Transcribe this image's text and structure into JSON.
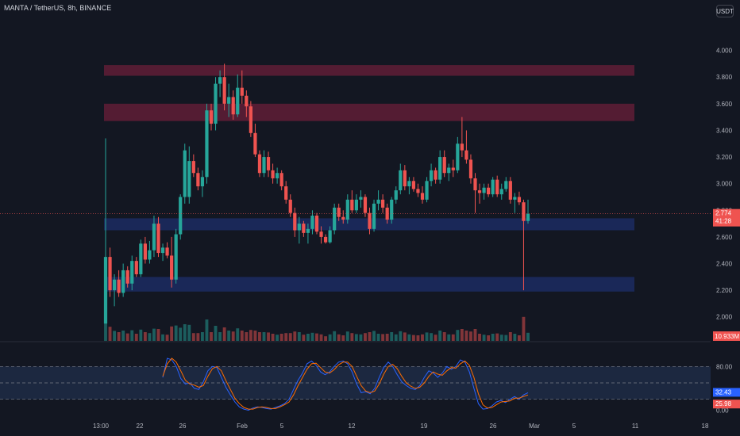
{
  "header": {
    "title": "MANTA / TetherUS, 8h, BINANCE",
    "currency_button": "USDT"
  },
  "colors": {
    "background": "#131722",
    "up": "#26a69a",
    "down": "#ef5350",
    "supply_zone": "#6b1f3a",
    "demand_zone": "#1e2f6b",
    "stoch_k": "#2962ff",
    "stoch_d": "#ff6d00",
    "stoch_band": "#1e2a44"
  },
  "chart_data": [
    {
      "type": "candlestick",
      "price_axis": {
        "ticks": [
          "4.000",
          "3.800",
          "3.600",
          "3.400",
          "3.200",
          "3.000",
          "2.800",
          "2.600",
          "2.400",
          "2.200",
          "2.000"
        ],
        "tick_values": [
          4.0,
          3.8,
          3.6,
          3.4,
          3.2,
          3.0,
          2.8,
          2.6,
          2.4,
          2.2,
          2.0
        ],
        "ylim": [
          1.82,
          4.2
        ]
      },
      "time_axis": {
        "labels": [
          "13:00",
          "22",
          "26",
          "Feb",
          "5",
          "12",
          "19",
          "26",
          "Mar",
          "5",
          "11",
          "18"
        ]
      },
      "last_price_label": "2.774",
      "countdown_label": "41:28",
      "volume_label": "10.933M",
      "zones": [
        {
          "kind": "supply",
          "low": 3.81,
          "high": 3.89
        },
        {
          "kind": "supply",
          "low": 3.47,
          "high": 3.6
        },
        {
          "kind": "demand",
          "low": 2.65,
          "high": 2.74
        },
        {
          "kind": "demand",
          "low": 2.19,
          "high": 2.3
        }
      ],
      "candles": [
        [
          1.95,
          3.34,
          1.95,
          2.45
        ],
        [
          2.45,
          2.52,
          2.15,
          2.2
        ],
        [
          2.2,
          2.32,
          2.08,
          2.28
        ],
        [
          2.28,
          2.35,
          2.15,
          2.18
        ],
        [
          2.18,
          2.4,
          2.15,
          2.35
        ],
        [
          2.35,
          2.38,
          2.22,
          2.25
        ],
        [
          2.25,
          2.46,
          2.2,
          2.42
        ],
        [
          2.42,
          2.45,
          2.3,
          2.32
        ],
        [
          2.32,
          2.58,
          2.3,
          2.55
        ],
        [
          2.55,
          2.6,
          2.4,
          2.43
        ],
        [
          2.43,
          2.57,
          2.4,
          2.5
        ],
        [
          2.5,
          2.76,
          2.45,
          2.7
        ],
        [
          2.7,
          2.75,
          2.45,
          2.48
        ],
        [
          2.48,
          2.55,
          2.42,
          2.52
        ],
        [
          2.52,
          2.56,
          2.44,
          2.46
        ],
        [
          2.46,
          2.6,
          2.22,
          2.28
        ],
        [
          2.28,
          2.66,
          2.25,
          2.62
        ],
        [
          2.62,
          2.92,
          2.58,
          2.9
        ],
        [
          2.9,
          3.3,
          2.85,
          3.25
        ],
        [
          2.9,
          3.28,
          2.85,
          3.17
        ],
        [
          3.17,
          3.22,
          3.05,
          3.08
        ],
        [
          3.08,
          3.12,
          2.95,
          2.98
        ],
        [
          2.98,
          3.1,
          2.9,
          3.05
        ],
        [
          3.05,
          3.6,
          3.0,
          3.55
        ],
        [
          3.55,
          3.6,
          3.4,
          3.45
        ],
        [
          3.45,
          3.8,
          3.4,
          3.75
        ],
        [
          3.75,
          3.85,
          3.65,
          3.8
        ],
        [
          3.8,
          3.9,
          3.55,
          3.6
        ],
        [
          3.6,
          3.75,
          3.5,
          3.65
        ],
        [
          3.65,
          3.7,
          3.48,
          3.52
        ],
        [
          3.52,
          3.82,
          3.5,
          3.72
        ],
        [
          3.72,
          3.85,
          3.6,
          3.66
        ],
        [
          3.66,
          3.7,
          3.5,
          3.58
        ],
        [
          3.58,
          3.62,
          3.35,
          3.38
        ],
        [
          3.38,
          3.45,
          3.2,
          3.22
        ],
        [
          3.22,
          3.25,
          3.05,
          3.08
        ],
        [
          3.08,
          3.25,
          3.05,
          3.2
        ],
        [
          3.2,
          3.24,
          3.05,
          3.1
        ],
        [
          3.1,
          3.15,
          3.0,
          3.04
        ],
        [
          3.04,
          3.12,
          3.0,
          3.08
        ],
        [
          3.08,
          3.1,
          2.95,
          2.98
        ],
        [
          2.98,
          3.02,
          2.85,
          2.88
        ],
        [
          2.88,
          2.92,
          2.75,
          2.78
        ],
        [
          2.78,
          2.82,
          2.6,
          2.65
        ],
        [
          2.65,
          2.75,
          2.55,
          2.7
        ],
        [
          2.7,
          2.72,
          2.6,
          2.63
        ],
        [
          2.63,
          2.7,
          2.55,
          2.66
        ],
        [
          2.66,
          2.8,
          2.62,
          2.76
        ],
        [
          2.76,
          2.78,
          2.62,
          2.64
        ],
        [
          2.64,
          2.68,
          2.55,
          2.6
        ],
        [
          2.6,
          2.62,
          2.55,
          2.56
        ],
        [
          2.56,
          2.68,
          2.55,
          2.65
        ],
        [
          2.65,
          2.85,
          2.62,
          2.82
        ],
        [
          2.82,
          2.85,
          2.72,
          2.75
        ],
        [
          2.75,
          2.8,
          2.7,
          2.73
        ],
        [
          2.73,
          2.92,
          2.7,
          2.88
        ],
        [
          2.88,
          2.95,
          2.78,
          2.8
        ],
        [
          2.8,
          2.92,
          2.78,
          2.88
        ],
        [
          2.88,
          2.95,
          2.82,
          2.9
        ],
        [
          2.9,
          2.92,
          2.75,
          2.78
        ],
        [
          2.78,
          2.82,
          2.62,
          2.66
        ],
        [
          2.66,
          2.88,
          2.64,
          2.85
        ],
        [
          2.85,
          2.95,
          2.8,
          2.88
        ],
        [
          2.88,
          2.92,
          2.78,
          2.82
        ],
        [
          2.82,
          2.85,
          2.7,
          2.73
        ],
        [
          2.73,
          2.9,
          2.7,
          2.88
        ],
        [
          2.88,
          2.98,
          2.85,
          2.95
        ],
        [
          2.95,
          3.15,
          2.92,
          3.1
        ],
        [
          3.1,
          3.14,
          2.95,
          2.98
        ],
        [
          2.98,
          3.05,
          2.92,
          3.02
        ],
        [
          3.02,
          3.05,
          2.94,
          2.96
        ],
        [
          2.96,
          3.0,
          2.9,
          2.93
        ],
        [
          2.93,
          2.98,
          2.85,
          2.88
        ],
        [
          2.88,
          3.05,
          2.86,
          3.02
        ],
        [
          3.02,
          3.15,
          2.98,
          3.1
        ],
        [
          3.1,
          3.12,
          3.0,
          3.03
        ],
        [
          3.03,
          3.25,
          3.0,
          3.2
        ],
        [
          3.2,
          3.25,
          3.05,
          3.08
        ],
        [
          3.08,
          3.15,
          3.02,
          3.12
        ],
        [
          3.12,
          3.18,
          3.05,
          3.1
        ],
        [
          3.1,
          3.35,
          3.08,
          3.3
        ],
        [
          3.3,
          3.5,
          3.2,
          3.25
        ],
        [
          3.25,
          3.4,
          3.15,
          3.18
        ],
        [
          3.18,
          3.22,
          3.0,
          3.04
        ],
        [
          3.04,
          3.08,
          2.78,
          2.95
        ],
        [
          2.95,
          3.0,
          2.85,
          2.93
        ],
        [
          2.93,
          3.0,
          2.88,
          2.97
        ],
        [
          2.97,
          3.0,
          2.9,
          2.92
        ],
        [
          2.92,
          3.05,
          2.9,
          3.03
        ],
        [
          3.03,
          3.06,
          2.9,
          2.92
        ],
        [
          2.92,
          3.0,
          2.88,
          2.96
        ],
        [
          2.96,
          3.05,
          2.94,
          3.02
        ],
        [
          3.02,
          3.05,
          2.85,
          2.88
        ],
        [
          2.88,
          2.93,
          2.78,
          2.9
        ],
        [
          2.9,
          2.94,
          2.84,
          2.86
        ],
        [
          2.86,
          2.88,
          2.2,
          2.72
        ],
        [
          2.72,
          2.88,
          2.7,
          2.774
        ]
      ]
    },
    {
      "type": "line",
      "name": "Stochastic RSI",
      "axis_ticks": [
        "80.00",
        "0.00"
      ],
      "tick_values": [
        80,
        0
      ],
      "ylim": [
        -8,
        108
      ],
      "k_label": "32.43",
      "d_label": "25.98",
      "band_lines": [
        80,
        50,
        20
      ],
      "series": [
        {
          "values": [
            60,
            95,
            92,
            80,
            58,
            48,
            50,
            40,
            38,
            52,
            72,
            80,
            78,
            60,
            42,
            28,
            15,
            6,
            2,
            0,
            4,
            6,
            5,
            3,
            2,
            5,
            8,
            12,
            20,
            38,
            55,
            68,
            85,
            90,
            82,
            70,
            65,
            70,
            80,
            88,
            90,
            85,
            70,
            48,
            32,
            34,
            30,
            40,
            60,
            78,
            88,
            80,
            65,
            52,
            45,
            40,
            38,
            45,
            60,
            72,
            68,
            60,
            68,
            80,
            75,
            80,
            92,
            88,
            70,
            40,
            12,
            2,
            3,
            8,
            15,
            18,
            14,
            20,
            25,
            20,
            28,
            32
          ]
        },
        {
          "values": [
            62,
            85,
            95,
            88,
            72,
            55,
            48,
            46,
            42,
            45,
            62,
            76,
            80,
            72,
            54,
            38,
            22,
            12,
            5,
            2,
            2,
            5,
            6,
            5,
            3,
            3,
            6,
            10,
            15,
            28,
            45,
            60,
            75,
            85,
            86,
            78,
            70,
            68,
            74,
            83,
            88,
            88,
            80,
            62,
            45,
            35,
            32,
            35,
            48,
            66,
            80,
            84,
            76,
            62,
            50,
            44,
            40,
            42,
            50,
            62,
            70,
            66,
            64,
            72,
            78,
            77,
            85,
            90,
            82,
            60,
            30,
            10,
            4,
            5,
            10,
            15,
            16,
            17,
            22,
            22,
            25,
            28
          ]
        }
      ]
    }
  ]
}
